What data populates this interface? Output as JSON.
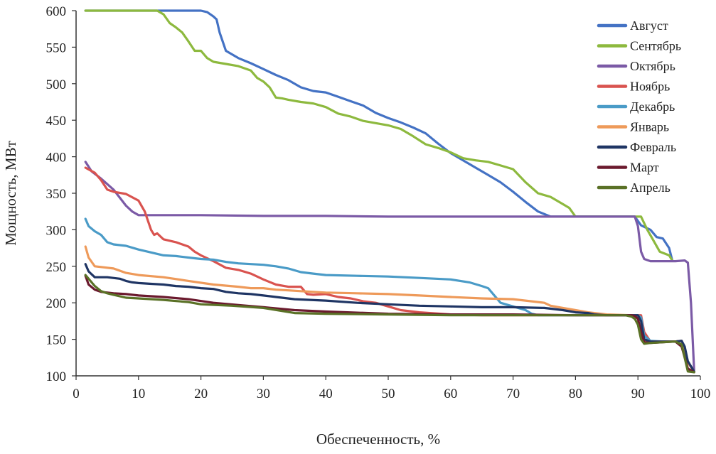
{
  "chart_data": {
    "type": "line",
    "title": "",
    "xlabel": "Обеспеченность, %",
    "ylabel": "Мощность, МВт",
    "xlim": [
      0,
      100
    ],
    "ylim": [
      100,
      600
    ],
    "x_ticks": [
      "0",
      "10",
      "20",
      "30",
      "40",
      "50",
      "60",
      "70",
      "80",
      "90",
      "100"
    ],
    "y_ticks": [
      "100",
      "150",
      "200",
      "250",
      "300",
      "350",
      "400",
      "450",
      "500",
      "550",
      "600"
    ],
    "grid": false,
    "legend_position": "top-right",
    "series": [
      {
        "name": "Август",
        "color": "#4472C4",
        "x": [
          1.5,
          15,
          20,
          21,
          22,
          22.5,
          23,
          24,
          26,
          28,
          30,
          32,
          34,
          36,
          38,
          40,
          42,
          44,
          46,
          48,
          50,
          52,
          54,
          56,
          58,
          60,
          62,
          64,
          66,
          68,
          70,
          72,
          74,
          76,
          78,
          80,
          82,
          84,
          86,
          88,
          89.5,
          90.5,
          92,
          93,
          94,
          95,
          95.5
        ],
        "y": [
          600,
          600,
          600,
          598,
          592,
          588,
          570,
          545,
          535,
          528,
          520,
          512,
          505,
          495,
          490,
          488,
          482,
          476,
          470,
          460,
          453,
          447,
          440,
          432,
          418,
          405,
          395,
          385,
          375,
          365,
          352,
          338,
          325,
          318,
          318,
          318,
          318,
          318,
          318,
          318,
          318,
          306,
          300,
          290,
          288,
          275,
          258
        ]
      },
      {
        "name": "Сентябрь",
        "color": "#8DB93E",
        "x": [
          1.5,
          13,
          14,
          15,
          16,
          17,
          18,
          19,
          20,
          21,
          22,
          24,
          26,
          28,
          29,
          30,
          31,
          32,
          33,
          34,
          36,
          38,
          40,
          42,
          44,
          46,
          48,
          50,
          52,
          54,
          56,
          58,
          60,
          62,
          64,
          66,
          68,
          70,
          72,
          74,
          76,
          78,
          79,
          80,
          81,
          82,
          84,
          86,
          88,
          89.5,
          90.5,
          91.5,
          92.5,
          93.5,
          95,
          95.5
        ],
        "y": [
          600,
          600,
          595,
          583,
          577,
          570,
          558,
          545,
          545,
          535,
          530,
          527,
          524,
          518,
          508,
          503,
          495,
          481,
          480,
          478,
          475,
          473,
          468,
          459,
          455,
          449,
          446,
          443,
          438,
          428,
          417,
          412,
          406,
          398,
          395,
          393,
          388,
          383,
          365,
          350,
          345,
          335,
          330,
          318,
          318,
          318,
          318,
          318,
          318,
          318,
          318,
          300,
          285,
          270,
          265,
          258
        ]
      },
      {
        "name": "Октябрь",
        "color": "#7B5AA6",
        "x": [
          1.5,
          2.5,
          4,
          6,
          8,
          9,
          10,
          15,
          20,
          30,
          40,
          50,
          60,
          70,
          80,
          89,
          89.5,
          90,
          90.5,
          91,
          92,
          94,
          96,
          97.5,
          98,
          98.5,
          99
        ],
        "y": [
          393,
          380,
          370,
          355,
          333,
          325,
          320,
          320,
          320,
          319,
          319,
          318,
          318,
          318,
          318,
          318,
          318,
          305,
          270,
          260,
          257,
          257,
          257,
          258,
          255,
          200,
          108
        ]
      },
      {
        "name": "Ноябрь",
        "color": "#D9534F",
        "x": [
          1.5,
          3,
          4,
          5,
          6,
          8,
          10,
          11,
          12,
          12.5,
          13,
          14,
          16,
          18,
          19,
          20,
          22,
          24,
          26,
          28,
          30,
          32,
          34,
          36,
          37,
          38,
          40,
          42,
          44,
          46,
          48,
          50,
          52,
          55,
          60,
          65,
          70,
          80,
          89,
          90,
          90.5,
          91,
          92,
          94,
          96,
          97,
          98,
          99
        ],
        "y": [
          385,
          378,
          368,
          355,
          352,
          349,
          340,
          325,
          300,
          293,
          295,
          287,
          283,
          277,
          270,
          265,
          257,
          248,
          245,
          240,
          232,
          225,
          222,
          222,
          212,
          211,
          212,
          208,
          206,
          202,
          200,
          195,
          190,
          187,
          184,
          183,
          183,
          183,
          183,
          183,
          183,
          160,
          147,
          147,
          147,
          148,
          118,
          106
        ]
      },
      {
        "name": "Декабрь",
        "color": "#4A9BC7",
        "x": [
          1.5,
          2,
          3,
          4,
          5,
          6,
          8,
          10,
          12,
          14,
          16,
          18,
          20,
          22,
          24,
          26,
          28,
          30,
          32,
          34,
          36,
          38,
          40,
          45,
          50,
          55,
          60,
          63,
          65,
          66,
          67,
          68,
          70,
          72,
          73,
          74,
          80,
          89,
          90,
          90.5,
          91,
          92,
          94,
          96,
          97,
          98,
          99
        ],
        "y": [
          315,
          305,
          298,
          293,
          283,
          280,
          278,
          273,
          269,
          265,
          264,
          262,
          260,
          259,
          256,
          254,
          253,
          252,
          250,
          247,
          242,
          240,
          238,
          237,
          236,
          234,
          232,
          228,
          223,
          220,
          210,
          200,
          195,
          190,
          185,
          183,
          183,
          183,
          183,
          180,
          155,
          148,
          147,
          147,
          148,
          118,
          106
        ]
      },
      {
        "name": "Январь",
        "color": "#EE9A5A",
        "x": [
          1.5,
          2,
          3,
          4,
          6,
          8,
          10,
          14,
          18,
          22,
          26,
          28,
          30,
          32,
          34,
          36,
          40,
          45,
          50,
          55,
          60,
          65,
          70,
          75,
          76,
          78,
          80,
          82,
          85,
          89,
          90,
          90.5,
          91,
          92,
          94,
          96,
          97,
          98,
          99
        ],
        "y": [
          277,
          262,
          250,
          249,
          247,
          241,
          238,
          235,
          230,
          225,
          222,
          220,
          220,
          218,
          217,
          216,
          214,
          213,
          212,
          210,
          208,
          206,
          205,
          200,
          196,
          193,
          190,
          187,
          184,
          183,
          180,
          160,
          148,
          147,
          147,
          147,
          148,
          118,
          106
        ]
      },
      {
        "name": "Февраль",
        "color": "#1F3564",
        "x": [
          1.5,
          2,
          3,
          5,
          7,
          8,
          9,
          10,
          12,
          14,
          16,
          18,
          20,
          22,
          24,
          26,
          28,
          30,
          32,
          35,
          40,
          45,
          50,
          55,
          60,
          65,
          70,
          75,
          78,
          80,
          82,
          83,
          85,
          89,
          90,
          90.5,
          91,
          92,
          94,
          96,
          97,
          97.5,
          98,
          99
        ],
        "y": [
          253,
          243,
          235,
          235,
          233,
          230,
          228,
          227,
          226,
          225,
          223,
          222,
          220,
          219,
          215,
          213,
          212,
          210,
          208,
          205,
          203,
          200,
          198,
          196,
          195,
          194,
          194,
          193,
          190,
          187,
          186,
          184,
          183,
          183,
          183,
          175,
          150,
          147,
          147,
          147,
          148,
          140,
          120,
          106
        ]
      },
      {
        "name": "Март",
        "color": "#6B1A2E",
        "x": [
          1.5,
          2,
          3,
          4,
          6,
          8,
          10,
          14,
          18,
          22,
          26,
          30,
          35,
          40,
          50,
          60,
          70,
          80,
          89,
          89.5,
          90,
          90.5,
          91,
          92,
          94,
          96,
          97,
          98,
          99
        ],
        "y": [
          237,
          225,
          218,
          215,
          213,
          212,
          210,
          208,
          205,
          200,
          197,
          194,
          190,
          188,
          185,
          184,
          184,
          183,
          183,
          182,
          178,
          160,
          146,
          145,
          146,
          147,
          140,
          110,
          105
        ]
      },
      {
        "name": "Апрель",
        "color": "#5A7126",
        "x": [
          1.5,
          2,
          3,
          4,
          5,
          6,
          8,
          10,
          14,
          18,
          20,
          25,
          30,
          35,
          40,
          50,
          60,
          70,
          80,
          88,
          89,
          89.5,
          90,
          90.5,
          91,
          92,
          94,
          96,
          97,
          98,
          99
        ],
        "y": [
          238,
          233,
          223,
          216,
          213,
          211,
          207,
          206,
          204,
          201,
          198,
          196,
          193,
          186,
          185,
          184,
          183,
          183,
          183,
          183,
          181,
          178,
          170,
          150,
          144,
          145,
          146,
          147,
          143,
          106,
          105
        ]
      }
    ]
  }
}
